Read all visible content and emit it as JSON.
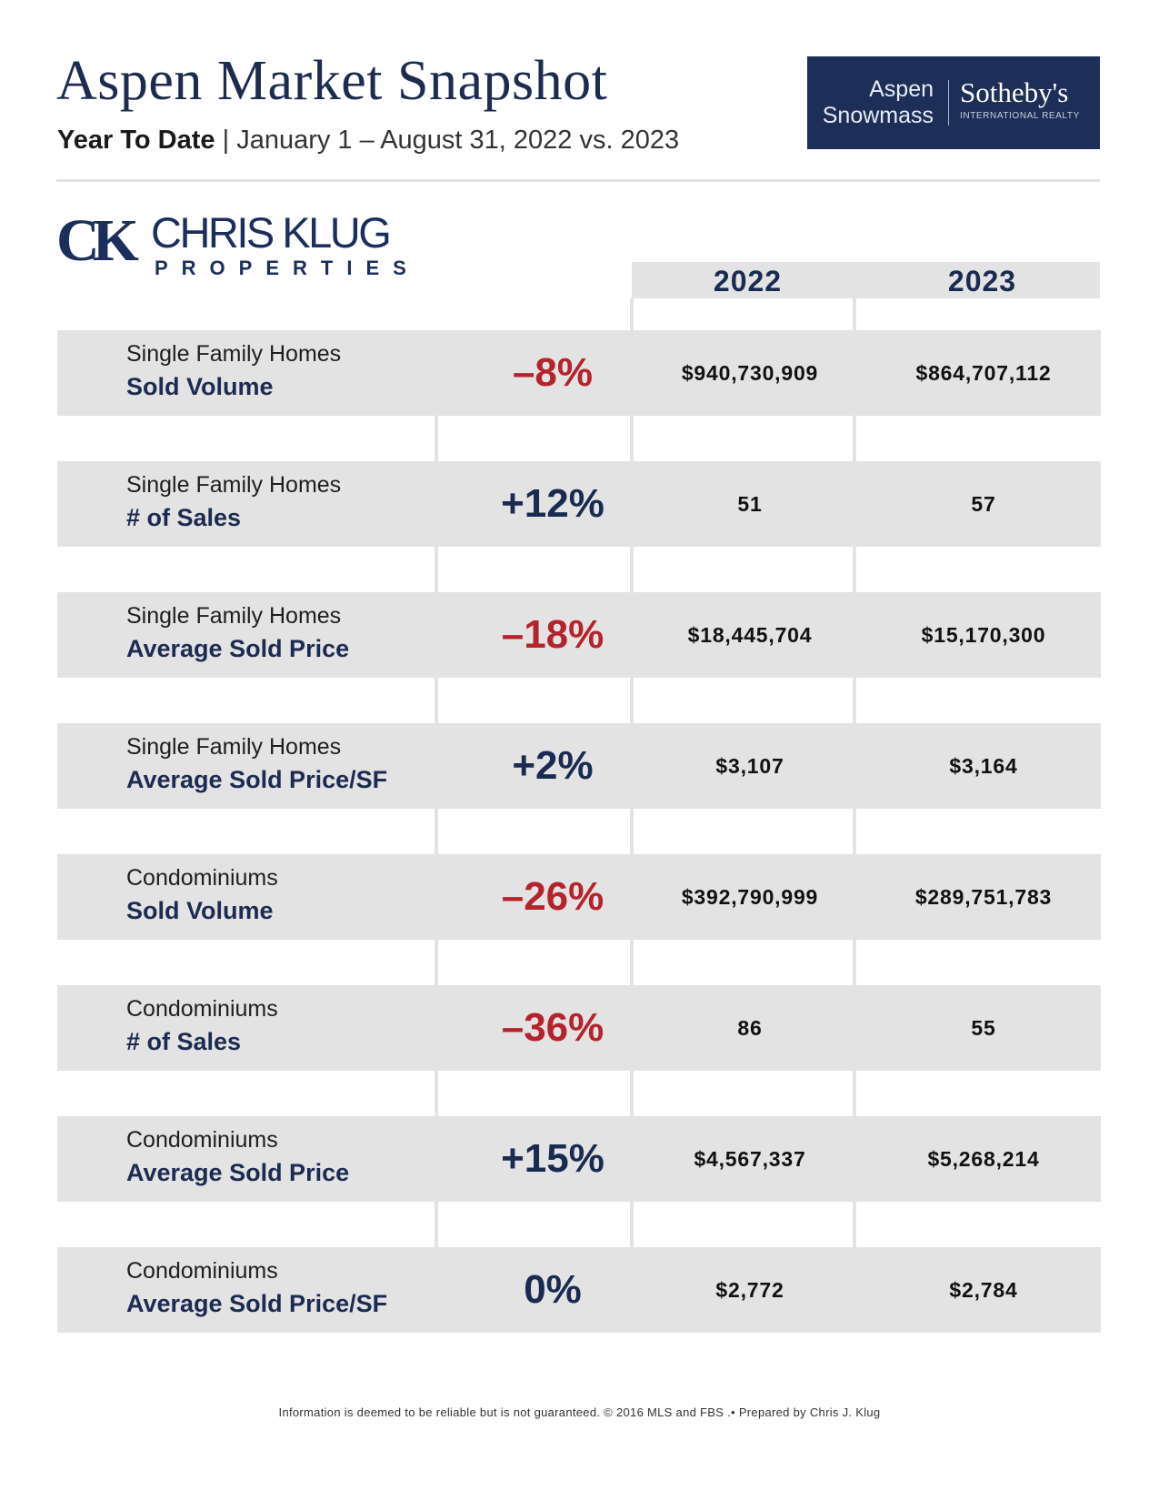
{
  "header": {
    "title": "Aspen Market Snapshot",
    "subtitle_bold": "Year To Date",
    "subtitle_sep": " | ",
    "subtitle_rest": "January 1 – August 31, 2022 vs. 2023"
  },
  "brand": {
    "line1": "Aspen",
    "line2": "Snowmass",
    "name": "Sotheby's",
    "sub": "INTERNATIONAL REALTY",
    "bg_color": "#1d2e58"
  },
  "agent_logo": {
    "monogram": "CK",
    "name": "CHRIS KLUG",
    "sub": "PROPERTIES"
  },
  "columns": {
    "year_a": "2022",
    "year_b": "2023"
  },
  "rows": [
    {
      "category": "Single Family Homes",
      "metric": "Sold Volume",
      "change": "–8%",
      "direction": "neg",
      "y2022": "$940,730,909",
      "y2023": "$864,707,112"
    },
    {
      "category": "Single Family Homes",
      "metric": "# of Sales",
      "change": "+12%",
      "direction": "pos",
      "y2022": "51",
      "y2023": "57"
    },
    {
      "category": "Single Family Homes",
      "metric": "Average Sold Price",
      "change": "–18%",
      "direction": "neg",
      "y2022": "$18,445,704",
      "y2023": "$15,170,300"
    },
    {
      "category": "Single Family Homes",
      "metric": "Average Sold Price/SF",
      "change": "+2%",
      "direction": "pos",
      "y2022": "$3,107",
      "y2023": "$3,164"
    },
    {
      "category": "Condominiums",
      "metric": "Sold Volume",
      "change": "–26%",
      "direction": "neg",
      "y2022": "$392,790,999",
      "y2023": "$289,751,783"
    },
    {
      "category": "Condominiums",
      "metric": "# of Sales",
      "change": "–36%",
      "direction": "neg",
      "y2022": "86",
      "y2023": "55"
    },
    {
      "category": "Condominiums",
      "metric": "Average Sold Price",
      "change": "+15%",
      "direction": "pos",
      "y2022": "$4,567,337",
      "y2023": "$5,268,214"
    },
    {
      "category": "Condominiums",
      "metric": "Average Sold Price/SF",
      "change": "0%",
      "direction": "pos",
      "y2022": "$2,772",
      "y2023": "$2,784"
    }
  ],
  "colors": {
    "negative": "#b4242c",
    "positive": "#1a2b52",
    "row_bg": "#e3e3e3"
  },
  "footer": "Information is deemed to be reliable but is not guaranteed. © 2016 MLS and FBS .• Prepared by Chris J. Klug"
}
